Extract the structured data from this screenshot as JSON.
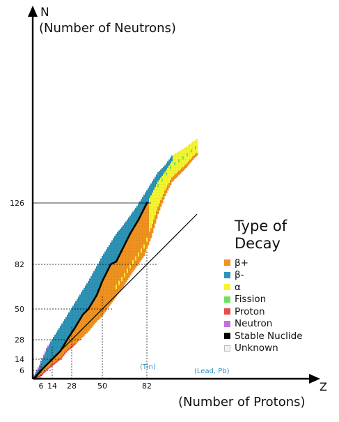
{
  "chart_data": {
    "type": "heatmap",
    "title": "",
    "ylabel_symbol": "N",
    "ylabel": "(Number of Neutrons)",
    "xlabel_symbol": "Z",
    "xlabel": "(Number of Protons)",
    "xlim": [
      0,
      118
    ],
    "ylim": [
      0,
      177
    ],
    "x_ticks": [
      6,
      14,
      28,
      50,
      82
    ],
    "y_ticks": [
      6,
      14,
      28,
      50,
      82,
      126
    ],
    "element_annotations": [
      {
        "z": 50,
        "label": "(Tin)"
      },
      {
        "z": 82,
        "label": "(Lead, Pb)"
      }
    ],
    "reference_line": {
      "description": "N = Z",
      "from": [
        0,
        0
      ],
      "to": [
        118,
        118
      ]
    },
    "legend_title": "Type of Decay",
    "legend": [
      {
        "key": "beta_plus",
        "label": "β+",
        "color": "#f0921f"
      },
      {
        "key": "beta_minus",
        "label": "β-",
        "color": "#2e93b5"
      },
      {
        "key": "alpha",
        "label": "α",
        "color": "#f5f530"
      },
      {
        "key": "fission",
        "label": "Fission",
        "color": "#6ee25f"
      },
      {
        "key": "proton",
        "label": "Proton",
        "color": "#e84b4b"
      },
      {
        "key": "neutron",
        "label": "Neutron",
        "color": "#c56ee0"
      },
      {
        "key": "stable",
        "label": "Stable Nuclide",
        "color": "#000000"
      },
      {
        "key": "unknown",
        "label": "Unknown",
        "color": "#f2f2f2"
      }
    ],
    "nuclide_band": {
      "description": "approximate extent of known nuclides by proton number",
      "columns": [
        {
          "z": 1,
          "n_min": 0,
          "n_max": 3
        },
        {
          "z": 5,
          "n_min": 1,
          "n_max": 10
        },
        {
          "z": 10,
          "n_min": 6,
          "n_max": 22
        },
        {
          "z": 15,
          "n_min": 10,
          "n_max": 30
        },
        {
          "z": 20,
          "n_min": 14,
          "n_max": 38
        },
        {
          "z": 25,
          "n_min": 20,
          "n_max": 46
        },
        {
          "z": 30,
          "n_min": 24,
          "n_max": 54
        },
        {
          "z": 35,
          "n_min": 29,
          "n_max": 62
        },
        {
          "z": 40,
          "n_min": 34,
          "n_max": 70
        },
        {
          "z": 45,
          "n_min": 40,
          "n_max": 79
        },
        {
          "z": 50,
          "n_min": 45,
          "n_max": 88
        },
        {
          "z": 55,
          "n_min": 52,
          "n_max": 96
        },
        {
          "z": 60,
          "n_min": 59,
          "n_max": 104
        },
        {
          "z": 65,
          "n_min": 66,
          "n_max": 110
        },
        {
          "z": 70,
          "n_min": 74,
          "n_max": 117
        },
        {
          "z": 75,
          "n_min": 81,
          "n_max": 124
        },
        {
          "z": 80,
          "n_min": 88,
          "n_max": 132
        },
        {
          "z": 85,
          "n_min": 101,
          "n_max": 140
        },
        {
          "z": 90,
          "n_min": 118,
          "n_max": 148
        },
        {
          "z": 95,
          "n_min": 131,
          "n_max": 153
        },
        {
          "z": 100,
          "n_min": 141,
          "n_max": 160
        },
        {
          "z": 105,
          "n_min": 146,
          "n_max": 163
        },
        {
          "z": 110,
          "n_min": 151,
          "n_max": 166
        },
        {
          "z": 115,
          "n_min": 157,
          "n_max": 170
        },
        {
          "z": 118,
          "n_min": 160,
          "n_max": 172
        }
      ],
      "stability_line": [
        [
          1,
          0
        ],
        [
          6,
          6
        ],
        [
          10,
          10
        ],
        [
          14,
          14
        ],
        [
          20,
          20
        ],
        [
          26,
          30
        ],
        [
          30,
          36
        ],
        [
          36,
          46
        ],
        [
          40,
          50
        ],
        [
          46,
          60
        ],
        [
          50,
          70
        ],
        [
          56,
          82
        ],
        [
          60,
          84
        ],
        [
          66,
          96
        ],
        [
          70,
          104
        ],
        [
          76,
          114
        ],
        [
          82,
          126
        ],
        [
          83,
          126
        ]
      ]
    }
  },
  "annotations": {
    "tin": "(Tin)",
    "lead": "(Lead, Pb)"
  }
}
